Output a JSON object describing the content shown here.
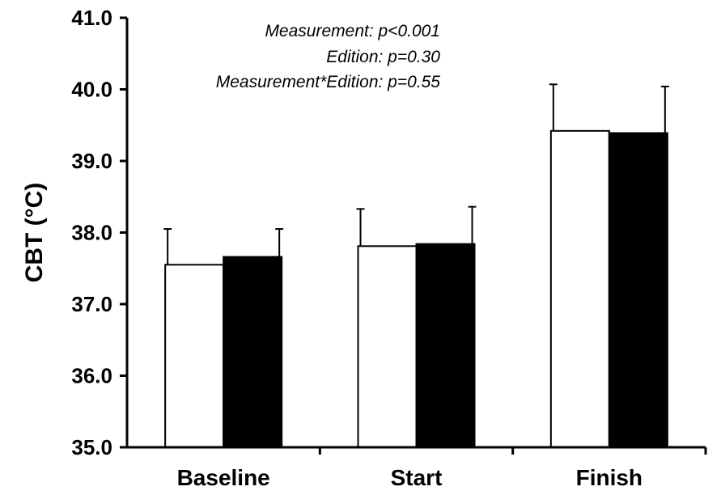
{
  "chart_data": {
    "type": "bar",
    "categories": [
      "Baseline",
      "Start",
      "Finish"
    ],
    "series": [
      {
        "values": [
          37.55,
          37.81,
          39.42
        ],
        "errors": [
          0.5,
          0.52,
          0.65
        ],
        "fill": "#ffffff"
      },
      {
        "values": [
          37.66,
          37.84,
          39.39
        ],
        "errors": [
          0.39,
          0.52,
          0.65
        ],
        "fill": "#000000"
      }
    ],
    "ylabel": "CBT (°C)",
    "ylim": [
      35.0,
      41.0
    ],
    "yticks": [
      "35.0",
      "36.0",
      "37.0",
      "38.0",
      "39.0",
      "40.0",
      "41.0"
    ],
    "annotations": [
      "Measurement: p<0.001",
      "Edition: p=0.30",
      "Measurement*Edition: p=0.55"
    ],
    "grid": false,
    "legend": "none"
  }
}
